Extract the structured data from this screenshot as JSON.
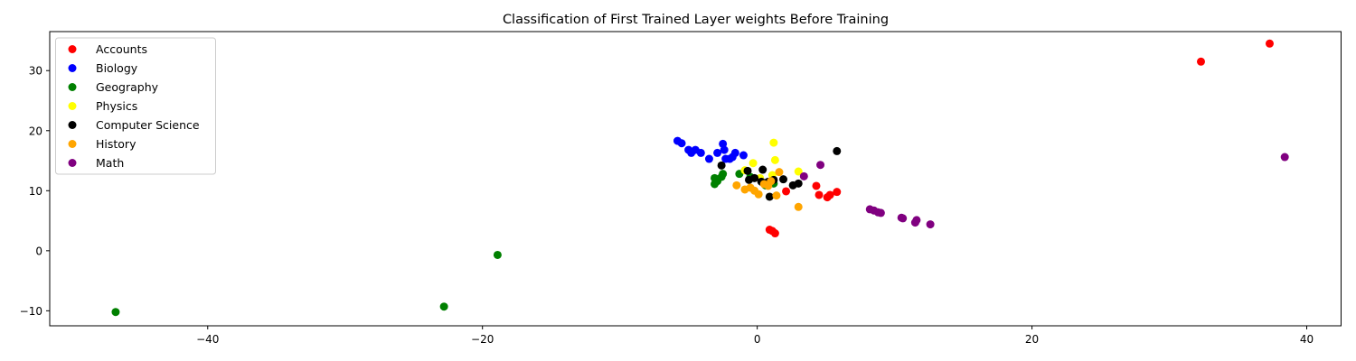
{
  "chart_data": {
    "type": "scatter",
    "title": "Classification of First Trained Layer weights Before Training",
    "xlabel": "",
    "ylabel": "",
    "xlim": [
      -51.5,
      42.5
    ],
    "ylim": [
      -12.5,
      36.5
    ],
    "xticks": [
      -40,
      -20,
      0,
      20,
      40
    ],
    "yticks": [
      -10,
      0,
      10,
      20,
      30
    ],
    "legend": "top-left",
    "grid": false,
    "series": [
      {
        "name": "Accounts",
        "color": "#ff0000",
        "points": [
          [
            37.3,
            34.5
          ],
          [
            32.3,
            31.5
          ],
          [
            4.3,
            10.8
          ],
          [
            4.5,
            9.3
          ],
          [
            5.1,
            8.9
          ],
          [
            5.3,
            9.3
          ],
          [
            5.8,
            9.8
          ],
          [
            2.1,
            9.9
          ],
          [
            0.9,
            3.5
          ],
          [
            1.1,
            3.3
          ],
          [
            1.3,
            2.9
          ]
        ]
      },
      {
        "name": "Biology",
        "color": "#0000ff",
        "points": [
          [
            -5.8,
            18.3
          ],
          [
            -5.5,
            17.9
          ],
          [
            -5.0,
            16.8
          ],
          [
            -4.8,
            16.3
          ],
          [
            -4.5,
            16.8
          ],
          [
            -4.1,
            16.3
          ],
          [
            -3.5,
            15.3
          ],
          [
            -2.9,
            16.3
          ],
          [
            -2.5,
            17.8
          ],
          [
            -2.4,
            16.8
          ],
          [
            -2.3,
            15.3
          ],
          [
            -1.8,
            15.6
          ],
          [
            -1.6,
            16.3
          ],
          [
            -1.0,
            15.9
          ],
          [
            -2.0,
            15.3
          ]
        ]
      },
      {
        "name": "Geography",
        "color": "#008000",
        "points": [
          [
            -46.7,
            -10.2
          ],
          [
            -22.8,
            -9.3
          ],
          [
            -18.9,
            -0.7
          ],
          [
            -3.1,
            11.1
          ],
          [
            -2.9,
            11.6
          ],
          [
            -2.6,
            12.3
          ],
          [
            -2.5,
            12.8
          ],
          [
            -3.1,
            12.1
          ],
          [
            -1.3,
            12.8
          ],
          [
            -0.5,
            12.3
          ],
          [
            0.6,
            10.9
          ],
          [
            1.2,
            11.2
          ]
        ]
      },
      {
        "name": "Physics",
        "color": "#ffff00",
        "points": [
          [
            1.2,
            18.0
          ],
          [
            1.3,
            15.1
          ],
          [
            -0.3,
            14.6
          ],
          [
            3.0,
            13.2
          ],
          [
            1.1,
            12.6
          ],
          [
            0.2,
            12.1
          ],
          [
            -0.9,
            13.4
          ],
          [
            0.8,
            11.3
          ]
        ]
      },
      {
        "name": "Computer Science",
        "color": "#000000",
        "points": [
          [
            5.8,
            16.6
          ],
          [
            -2.6,
            14.2
          ],
          [
            -0.7,
            13.3
          ],
          [
            0.4,
            13.5
          ],
          [
            -0.2,
            12.1
          ],
          [
            -0.6,
            11.8
          ],
          [
            0.8,
            11.5
          ],
          [
            1.2,
            11.8
          ],
          [
            1.9,
            11.9
          ],
          [
            2.6,
            10.9
          ],
          [
            3.0,
            11.2
          ],
          [
            0.9,
            9.0
          ],
          [
            0.3,
            11.5
          ]
        ]
      },
      {
        "name": "History",
        "color": "#ffa500",
        "points": [
          [
            -1.5,
            10.9
          ],
          [
            -0.9,
            10.2
          ],
          [
            -0.5,
            10.5
          ],
          [
            -0.2,
            10.0
          ],
          [
            0.1,
            9.4
          ],
          [
            0.5,
            11.1
          ],
          [
            1.0,
            11.6
          ],
          [
            1.4,
            9.2
          ],
          [
            1.6,
            13.1
          ],
          [
            3.0,
            7.3
          ],
          [
            0.8,
            10.8
          ]
        ]
      },
      {
        "name": "Math",
        "color": "#800080",
        "points": [
          [
            38.4,
            15.6
          ],
          [
            4.6,
            14.3
          ],
          [
            3.4,
            12.4
          ],
          [
            8.2,
            6.9
          ],
          [
            8.5,
            6.7
          ],
          [
            8.8,
            6.4
          ],
          [
            9.0,
            6.3
          ],
          [
            10.5,
            5.5
          ],
          [
            10.6,
            5.4
          ],
          [
            11.5,
            4.7
          ],
          [
            11.6,
            5.1
          ],
          [
            12.6,
            4.4
          ]
        ]
      }
    ]
  }
}
